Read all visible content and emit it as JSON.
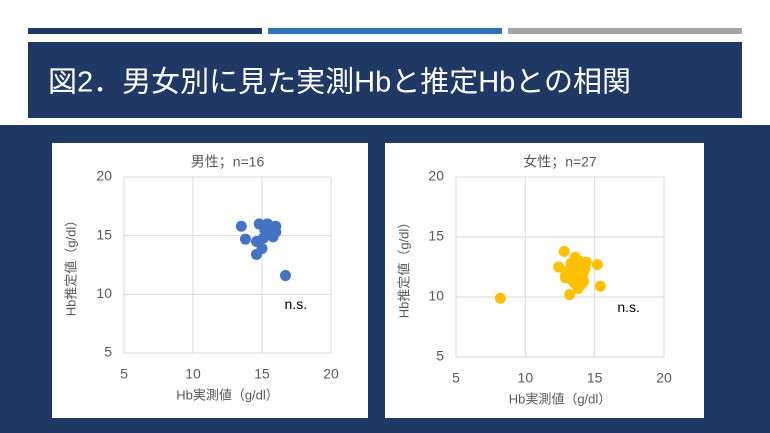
{
  "slide_title": "図2．男女別に見た実測Hbと推定Hbとの相関",
  "chart_data": [
    {
      "type": "scatter",
      "title": "男性；n=16",
      "x_label": "Hb実測値（g/dl）",
      "y_label": "Hb推定値（g/dl）",
      "annotation": "n.s.",
      "xlim": [
        5,
        20
      ],
      "ylim": [
        5,
        20
      ],
      "xticks": [
        5,
        10,
        15,
        20
      ],
      "yticks": [
        5,
        10,
        15,
        20
      ],
      "grid": true,
      "series": [
        {
          "color": "#4472c4",
          "x": [
            13.5,
            13.8,
            14.8,
            15.4,
            16.0,
            15.6,
            15.8,
            15.0,
            14.6,
            14.6,
            16.0,
            15.2,
            15.6,
            16.7,
            15.1,
            15.4
          ],
          "values": [
            15.8,
            14.7,
            16.0,
            16.0,
            15.8,
            15.3,
            14.9,
            13.9,
            14.5,
            13.4,
            15.3,
            15.5,
            15.6,
            11.6,
            14.8,
            15.1
          ]
        }
      ]
    },
    {
      "type": "scatter",
      "title": "女性；n=27",
      "x_label": "Hb実測値（g/dl）",
      "y_label": "Hb推定値（g/dl）",
      "annotation": "n.s.",
      "xlim": [
        5,
        20
      ],
      "ylim": [
        5,
        20
      ],
      "xticks": [
        5,
        10,
        15,
        20
      ],
      "yticks": [
        5,
        10,
        15,
        20
      ],
      "grid": true,
      "series": [
        {
          "color": "#ffc000",
          "x": [
            8.2,
            12.8,
            12.4,
            12.9,
            13.3,
            13.6,
            13.8,
            14.2,
            14.4,
            15.2,
            15.4,
            13.2,
            13.8,
            13.4,
            14.1,
            13.7,
            13.9,
            13.1,
            13.5,
            14.2,
            13.9,
            14.3,
            13.3,
            13.7,
            14.0,
            12.9,
            14.2
          ],
          "values": [
            9.9,
            13.8,
            12.5,
            11.8,
            12.8,
            13.3,
            12.6,
            12.1,
            12.9,
            12.7,
            10.9,
            10.2,
            10.7,
            11.4,
            11.6,
            12.0,
            13.0,
            12.2,
            11.2,
            11.3,
            11.7,
            12.4,
            12.6,
            12.2,
            11.0,
            11.6,
            12.8
          ]
        }
      ]
    }
  ]
}
